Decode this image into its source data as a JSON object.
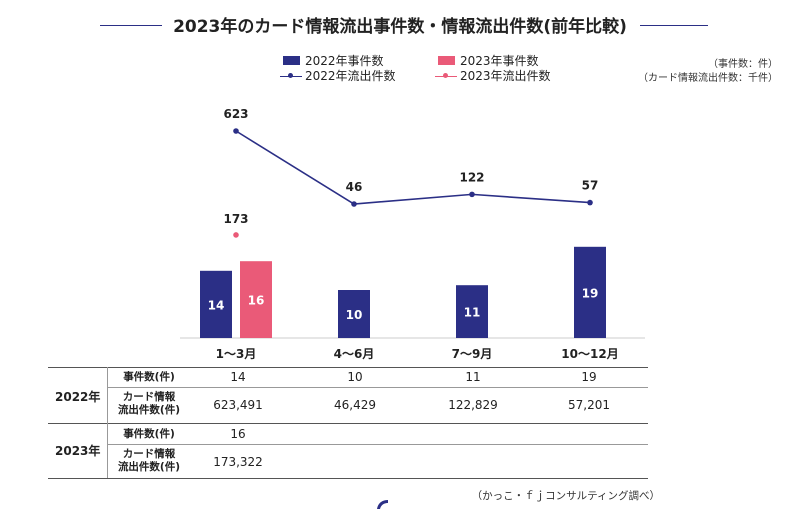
{
  "title": "2023年のカード情報流出事件数・情報流出件数(前年比較)",
  "units": {
    "line1": "（事件数：件）",
    "line2": "（カード情報流出件数：千件）"
  },
  "legend": {
    "bar_2022": "2022年事件数",
    "bar_2023": "2023年事件数",
    "line_2022": "2022年流出件数",
    "line_2023": "2023年流出件数"
  },
  "colors": {
    "navy": "#2b2f86",
    "pink": "#ea5a78",
    "title_line": "#2b2f86"
  },
  "chart_data": {
    "type": "bar",
    "categories": [
      "1〜3月",
      "4〜6月",
      "7〜9月",
      "10〜12月"
    ],
    "series": [
      {
        "name": "2022年事件数",
        "kind": "bar",
        "values": [
          14,
          10,
          11,
          19
        ]
      },
      {
        "name": "2023年事件数",
        "kind": "bar",
        "values": [
          16,
          null,
          null,
          null
        ]
      },
      {
        "name": "2022年流出件数",
        "kind": "line",
        "values": [
          623,
          46,
          122,
          57
        ]
      },
      {
        "name": "2023年流出件数",
        "kind": "line",
        "values": [
          173,
          null,
          null,
          null
        ]
      }
    ],
    "title": "2023年のカード情報流出事件数・情報流出件数(前年比較)",
    "legend_position": "top",
    "grid": false
  },
  "table": {
    "year_2022": "2022年",
    "year_2023": "2023年",
    "label_cases": "事件数(件)",
    "label_leak_1": "カード情報",
    "label_leak_2": "流出件数(件)",
    "rows_2022_cases": [
      "14",
      "10",
      "11",
      "19"
    ],
    "rows_2022_leak": [
      "623,491",
      "46,429",
      "122,829",
      "57,201"
    ],
    "rows_2023_cases": [
      "16",
      "",
      "",
      ""
    ],
    "rows_2023_leak": [
      "173,322",
      "",
      "",
      ""
    ]
  },
  "source": "（かっこ・ｆｊコンサルティング調べ）"
}
